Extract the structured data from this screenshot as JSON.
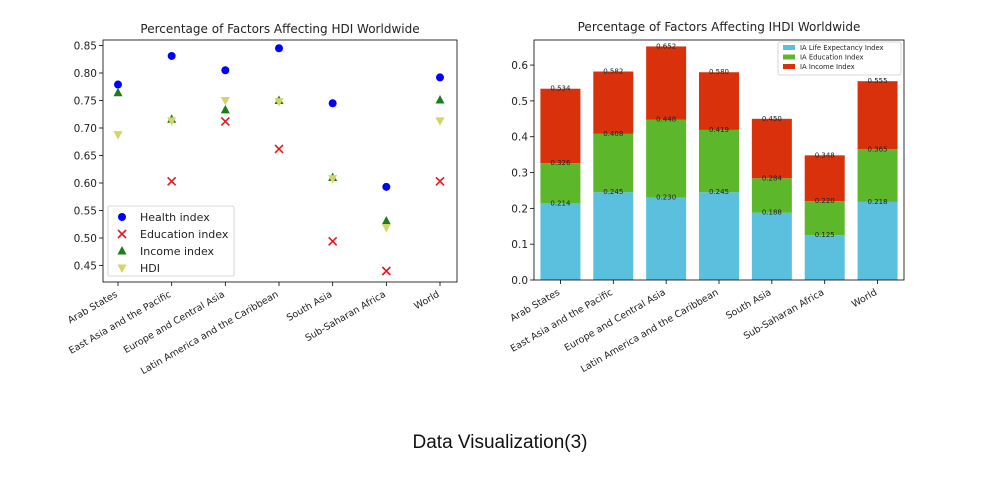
{
  "caption": "Data Visualization(3)",
  "chart_data": [
    {
      "type": "scatter",
      "title": "Percentage of Factors Affecting HDI Worldwide",
      "categories": [
        "Arab States",
        "East Asia and the Pacific",
        "Europe and Central Asia",
        "Latin America and the Caribbean",
        "South Asia",
        "Sub-Saharan Africa",
        "World"
      ],
      "ylim": [
        0.42,
        0.86
      ],
      "yticks": [
        0.45,
        0.5,
        0.55,
        0.6,
        0.65,
        0.7,
        0.75,
        0.8,
        0.85
      ],
      "legend_position": "lower-left",
      "series": [
        {
          "name": "Health index",
          "marker": "circle",
          "color": "#0000ff",
          "values": [
            0.779,
            0.831,
            0.805,
            0.845,
            0.745,
            0.593,
            0.792
          ]
        },
        {
          "name": "Education index",
          "marker": "x",
          "color": "#e41a1c",
          "values": [
            null,
            0.603,
            0.712,
            0.662,
            0.494,
            0.44,
            0.603
          ]
        },
        {
          "name": "Income index",
          "marker": "triangle-up",
          "color": "#1a7f1a",
          "values": [
            0.764,
            0.716,
            0.733,
            0.75,
            0.61,
            0.531,
            0.751
          ]
        },
        {
          "name": "HDI",
          "marker": "triangle-down",
          "color": "#d4d46a",
          "values": [
            0.688,
            0.713,
            0.75,
            0.748,
            0.608,
            0.519,
            0.713
          ]
        }
      ]
    },
    {
      "type": "bar",
      "stacked": true,
      "title": "Percentage of Factors Affecting IHDI Worldwide",
      "categories": [
        "Arab States",
        "East Asia and the Pacific",
        "Europe and Central Asia",
        "Latin America and the Caribbean",
        "South Asia",
        "Sub-Saharan Africa",
        "World"
      ],
      "ylim": [
        0,
        0.67
      ],
      "yticks": [
        0.0,
        0.1,
        0.2,
        0.3,
        0.4,
        0.5,
        0.6
      ],
      "legend_position": "top-right",
      "series": [
        {
          "name": "IA Life Expectancy Index",
          "color": "#5bc0de",
          "values": [
            0.214,
            0.245,
            0.23,
            0.245,
            0.188,
            0.125,
            0.218
          ]
        },
        {
          "name": "IA Education Index",
          "color": "#5cb82a",
          "values": [
            0.112,
            0.163,
            0.218,
            0.174,
            0.096,
            0.095,
            0.147
          ]
        },
        {
          "name": "IA Income Index",
          "color": "#d9310b",
          "values": [
            0.208,
            0.174,
            0.204,
            0.161,
            0.166,
            0.128,
            0.19
          ]
        }
      ],
      "data_labels": {
        "bottom": [
          "0.214",
          "0.245",
          "0.230",
          "0.245",
          "0.188",
          "0.125",
          "0.218"
        ],
        "middle": [
          "0.326",
          "0.408",
          "0.448",
          "0.419",
          "0.284",
          "0.220",
          "0.365"
        ],
        "top": [
          "0.534",
          "0.582",
          "0.652",
          "0.580",
          "0.450",
          "0.348",
          "0.555"
        ]
      }
    }
  ]
}
